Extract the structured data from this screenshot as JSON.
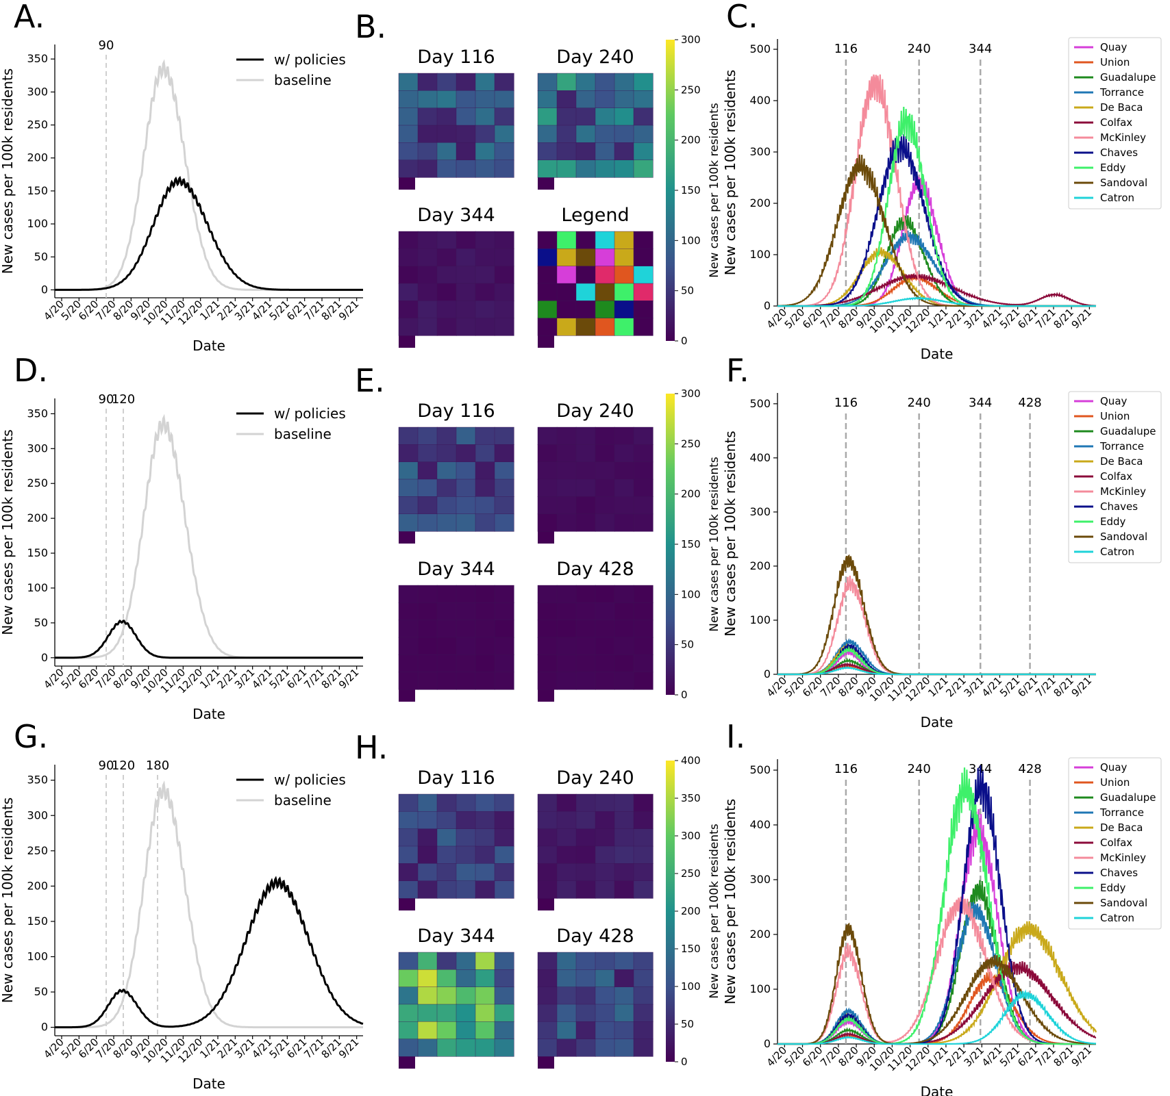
{
  "chart_data": {
    "x_tick_labels": [
      "4/20",
      "5/20",
      "6/20",
      "7/20",
      "8/20",
      "9/20",
      "10/20",
      "11/20",
      "12/20",
      "1/21",
      "2/21",
      "3/21",
      "4/21",
      "5/21",
      "6/21",
      "7/21",
      "8/21",
      "9/21"
    ],
    "left_panels": {
      "type": "line",
      "ylabel": "New cases per 100k residents",
      "xlabel": "Date",
      "yticks": [
        0,
        50,
        100,
        150,
        200,
        250,
        300,
        350
      ],
      "ylim": [
        -12,
        372
      ],
      "xlim_days": [
        0,
        540
      ],
      "legend": [
        "w/ policies",
        "baseline"
      ],
      "colors": {
        "policy": "#000000",
        "baseline": "#d3d3d3"
      },
      "baseline": {
        "peak_day": 190,
        "peak": 335,
        "width": 34,
        "decay_width": 38
      },
      "panels": [
        {
          "letter": "A.",
          "vlines": [
            90
          ],
          "vline_labels": [
            "90"
          ],
          "policy_curves": [
            {
              "peak_day": 217,
              "peak": 165,
              "w1": 44,
              "w2": 50
            }
          ]
        },
        {
          "letter": "D.",
          "vlines": [
            90,
            120
          ],
          "vline_labels": [
            "90",
            "120"
          ],
          "policy_curves": [
            {
              "peak_day": 118,
              "peak": 52,
              "w1": 24,
              "w2": 24
            }
          ]
        },
        {
          "letter": "G.",
          "vlines": [
            90,
            120,
            180
          ],
          "vline_labels": [
            "90",
            "120",
            "180"
          ],
          "policy_curves": [
            {
              "peak_day": 118,
              "peak": 52,
              "w1": 24,
              "w2": 26
            },
            {
              "peak_day": 390,
              "peak": 205,
              "w1": 55,
              "w2": 55
            }
          ]
        }
      ]
    },
    "right_panels": {
      "type": "line",
      "ylabel": "New cases per 100k residents",
      "xlabel": "Date",
      "yticks": [
        0,
        100,
        200,
        300,
        400,
        500
      ],
      "ylim": [
        0,
        520
      ],
      "xlim_days": [
        0,
        540
      ],
      "counties": [
        "Quay",
        "Union",
        "Guadalupe",
        "Torrance",
        "De Baca",
        "Colfax",
        "McKinley",
        "Chaves",
        "Eddy",
        "Sandoval",
        "Catron"
      ],
      "county_colors": [
        "#d63ed9",
        "#e0561f",
        "#1e8a1e",
        "#1f77b4",
        "#c9a91a",
        "#8b0a3a",
        "#f48b9b",
        "#0a0f8a",
        "#3ef06a",
        "#6b4a0a",
        "#1fd3d9"
      ],
      "panels": [
        {
          "letter": "C.",
          "vlines": [
            116,
            240,
            344
          ],
          "vline_labels": [
            "116",
            "240",
            "344"
          ],
          "peaks": [
            [
              240,
              240,
              28
            ],
            [
              232,
              55,
              35
            ],
            [
              215,
              165,
              30
            ],
            [
              222,
              135,
              40
            ],
            [
              175,
              105,
              35
            ],
            [
              232,
              58,
              60
            ],
            [
              165,
              432,
              33
            ],
            [
              208,
              310,
              38
            ],
            [
              218,
              360,
              30
            ],
            [
              140,
              272,
              38
            ],
            [
              238,
              15,
              40
            ]
          ],
          "extra": [
            [
              470,
              22,
              25,
              5
            ]
          ]
        },
        {
          "letter": "F.",
          "vlines": [
            116,
            240,
            344,
            428
          ],
          "vline_labels": [
            "116",
            "240",
            "344",
            "428"
          ],
          "peaks": [
            [
              120,
              40,
              18
            ],
            [
              120,
              15,
              20
            ],
            [
              120,
              25,
              20
            ],
            [
              122,
              60,
              22
            ],
            [
              118,
              50,
              20
            ],
            [
              118,
              18,
              22
            ],
            [
              124,
              168,
              22
            ],
            [
              122,
              52,
              20
            ],
            [
              120,
              45,
              20
            ],
            [
              120,
              210,
              24
            ],
            [
              118,
              12,
              20
            ]
          ],
          "extra": []
        },
        {
          "letter": "I.",
          "vlines": [
            116,
            240,
            344,
            428
          ],
          "vline_labels": [
            "116",
            "240",
            "344",
            "428"
          ],
          "peaks": [
            [
              340,
              390,
              30
            ],
            [
              360,
              120,
              35
            ],
            [
              340,
              280,
              30
            ],
            [
              335,
              245,
              32
            ],
            [
              425,
              210,
              50
            ],
            [
              405,
              140,
              55
            ],
            [
              310,
              255,
              40
            ],
            [
              345,
              470,
              30
            ],
            [
              318,
              465,
              35
            ],
            [
              365,
              150,
              45
            ],
            [
              420,
              90,
              35
            ]
          ],
          "first_wave": [
            40,
            15,
            25,
            60,
            50,
            18,
            168,
            52,
            45,
            210,
            12
          ]
        }
      ]
    },
    "maps": {
      "colormap": [
        "#440154",
        "#3b528b",
        "#21918c",
        "#5ec962",
        "#fde725"
      ],
      "colorbar_label": "New cases per 100k residents",
      "row1": {
        "letter": "B.",
        "titles": [
          "Day 116",
          "Day 240",
          "Day 344",
          "Legend"
        ],
        "cbar_ticks": [
          0,
          50,
          100,
          150,
          200,
          250,
          300
        ],
        "cbar_max": 300
      },
      "row2": {
        "letter": "E.",
        "titles": [
          "Day 116",
          "Day 240",
          "Day 344",
          "Day 428"
        ],
        "cbar_ticks": [
          0,
          50,
          100,
          150,
          200,
          250,
          300
        ],
        "cbar_max": 300
      },
      "row3": {
        "letter": "H.",
        "titles": [
          "Day 116",
          "Day 240",
          "Day 344",
          "Day 428"
        ],
        "cbar_ticks": [
          0,
          50,
          100,
          150,
          200,
          250,
          300,
          350,
          400
        ],
        "cbar_max": 400
      }
    }
  }
}
